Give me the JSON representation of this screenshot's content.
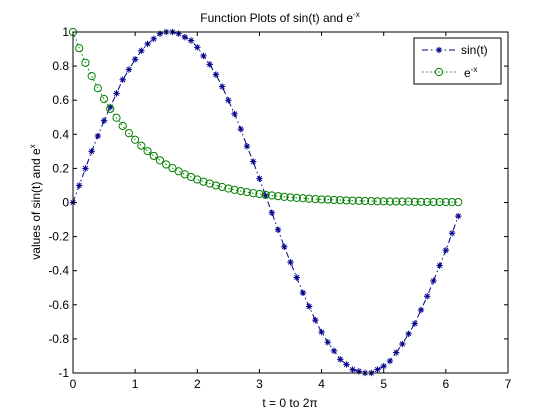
{
  "chart_data": {
    "type": "line",
    "title": "Function Plots of sin(t) and e",
    "title_sup": "-x",
    "xlabel": "t = 0 to 2π",
    "ylabel": "values of sin(t) and e",
    "ylabel_sup": "x",
    "xlim": [
      0,
      7
    ],
    "ylim": [
      -1,
      1
    ],
    "xticks": [
      "0",
      "1",
      "2",
      "3",
      "4",
      "5",
      "6",
      "7"
    ],
    "yticks": [
      "-1",
      "-0.8",
      "-0.6",
      "-0.4",
      "-0.2",
      "0",
      "0.2",
      "0.4",
      "0.6",
      "0.8",
      "1"
    ],
    "grid": false,
    "legend_position": "top-right",
    "series": [
      {
        "name": "sin(t)",
        "color": "#00008b",
        "line": "dash-dot",
        "marker": "asterisk",
        "x": [
          0,
          0.1,
          0.2,
          0.3,
          0.4,
          0.5,
          0.6,
          0.7,
          0.8,
          0.9,
          1.0,
          1.1,
          1.2,
          1.3,
          1.4,
          1.5,
          1.6,
          1.7,
          1.8,
          1.9,
          2.0,
          2.1,
          2.2,
          2.3,
          2.4,
          2.5,
          2.6,
          2.7,
          2.8,
          2.9,
          3.0,
          3.1,
          3.2,
          3.3,
          3.4,
          3.5,
          3.6,
          3.7,
          3.8,
          3.9,
          4.0,
          4.1,
          4.2,
          4.3,
          4.4,
          4.5,
          4.6,
          4.7,
          4.8,
          4.9,
          5.0,
          5.1,
          5.2,
          5.3,
          5.4,
          5.5,
          5.6,
          5.7,
          5.8,
          5.9,
          6.0,
          6.1,
          6.2
        ],
        "y": [
          0.0,
          0.1,
          0.2,
          0.3,
          0.39,
          0.48,
          0.56,
          0.64,
          0.72,
          0.78,
          0.84,
          0.89,
          0.93,
          0.96,
          0.99,
          1.0,
          1.0,
          0.99,
          0.97,
          0.95,
          0.91,
          0.86,
          0.81,
          0.75,
          0.68,
          0.6,
          0.52,
          0.43,
          0.33,
          0.24,
          0.14,
          0.04,
          -0.06,
          -0.16,
          -0.26,
          -0.35,
          -0.44,
          -0.53,
          -0.61,
          -0.69,
          -0.76,
          -0.82,
          -0.87,
          -0.92,
          -0.95,
          -0.98,
          -0.99,
          -1.0,
          -1.0,
          -0.98,
          -0.96,
          -0.93,
          -0.88,
          -0.83,
          -0.77,
          -0.71,
          -0.63,
          -0.55,
          -0.46,
          -0.37,
          -0.28,
          -0.18,
          -0.08
        ]
      },
      {
        "name": "e",
        "name_sup": "-x",
        "color": "#008000",
        "line": "dotted",
        "marker": "circle",
        "x": [
          0,
          0.1,
          0.2,
          0.3,
          0.4,
          0.5,
          0.6,
          0.7,
          0.8,
          0.9,
          1.0,
          1.1,
          1.2,
          1.3,
          1.4,
          1.5,
          1.6,
          1.7,
          1.8,
          1.9,
          2.0,
          2.1,
          2.2,
          2.3,
          2.4,
          2.5,
          2.6,
          2.7,
          2.8,
          2.9,
          3.0,
          3.1,
          3.2,
          3.3,
          3.4,
          3.5,
          3.6,
          3.7,
          3.8,
          3.9,
          4.0,
          4.1,
          4.2,
          4.3,
          4.4,
          4.5,
          4.6,
          4.7,
          4.8,
          4.9,
          5.0,
          5.1,
          5.2,
          5.3,
          5.4,
          5.5,
          5.6,
          5.7,
          5.8,
          5.9,
          6.0,
          6.1,
          6.2
        ],
        "y": [
          1.0,
          0.905,
          0.819,
          0.741,
          0.67,
          0.607,
          0.549,
          0.497,
          0.449,
          0.407,
          0.368,
          0.333,
          0.301,
          0.273,
          0.247,
          0.223,
          0.202,
          0.183,
          0.165,
          0.15,
          0.135,
          0.122,
          0.111,
          0.1,
          0.091,
          0.082,
          0.074,
          0.067,
          0.061,
          0.055,
          0.05,
          0.045,
          0.041,
          0.037,
          0.033,
          0.03,
          0.027,
          0.025,
          0.022,
          0.02,
          0.018,
          0.017,
          0.015,
          0.014,
          0.012,
          0.011,
          0.01,
          0.009,
          0.008,
          0.007,
          0.007,
          0.006,
          0.006,
          0.005,
          0.005,
          0.004,
          0.004,
          0.003,
          0.003,
          0.003,
          0.002,
          0.002,
          0.002
        ]
      }
    ]
  }
}
